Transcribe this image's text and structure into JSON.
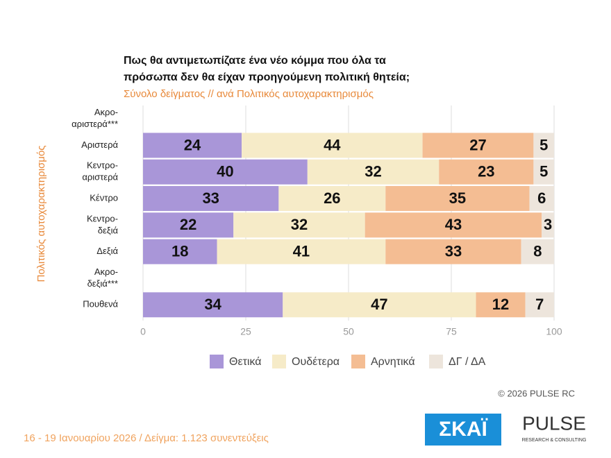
{
  "chart_data": {
    "type": "stacked-bar-horizontal",
    "title": [
      "Πως θα αντιμετωπίζατε ένα νέο κόμμα που όλα τα",
      "πρόσωπα δεν θα είχαν προηγούμενη πολιτική θητεία;"
    ],
    "subtitle": "Σύνολο δείγματος // ανά Πολιτικός αυτοχαρακτηρισμός",
    "y_label": "Πολιτικός αυτοχαρακτηρισμός",
    "categories": [
      [
        "Ακρο-",
        "αριστερά***"
      ],
      [
        "Αριστερά"
      ],
      [
        "Κεντρο-",
        "αριστερά"
      ],
      [
        "Κέντρο"
      ],
      [
        "Κεντρο-",
        "δεξιά"
      ],
      [
        "Δεξιά"
      ],
      [
        "Ακρο-",
        "δεξιά***"
      ],
      [
        "Πουθενά"
      ]
    ],
    "series": [
      {
        "name": "Θετικά",
        "color": "#a996d8",
        "values": [
          null,
          24,
          40,
          33,
          22,
          18,
          null,
          34
        ]
      },
      {
        "name": "Ουδέτερα",
        "color": "#f6ebc8",
        "values": [
          null,
          44,
          32,
          26,
          32,
          41,
          null,
          47
        ]
      },
      {
        "name": "Αρνητικά",
        "color": "#f4bd93",
        "values": [
          null,
          27,
          23,
          35,
          43,
          33,
          null,
          12
        ]
      },
      {
        "name": "ΔΓ / ΔΑ",
        "color": "#ede5dc",
        "values": [
          null,
          5,
          5,
          6,
          3,
          8,
          null,
          7
        ]
      }
    ],
    "xlim": [
      0,
      100
    ],
    "xticks": [
      0,
      25,
      50,
      75,
      100
    ],
    "grid": true,
    "copyright": "© 2026 PULSE RC",
    "footer": "16 - 19 Ιανουαρίου 2026 / Δείγμα: 1.123 συνεντεύξεις",
    "logos": {
      "skai": "ΣΚΑΪ",
      "pulse": "PULSE",
      "pulse_sub": "RESEARCH & CONSULTING"
    }
  }
}
